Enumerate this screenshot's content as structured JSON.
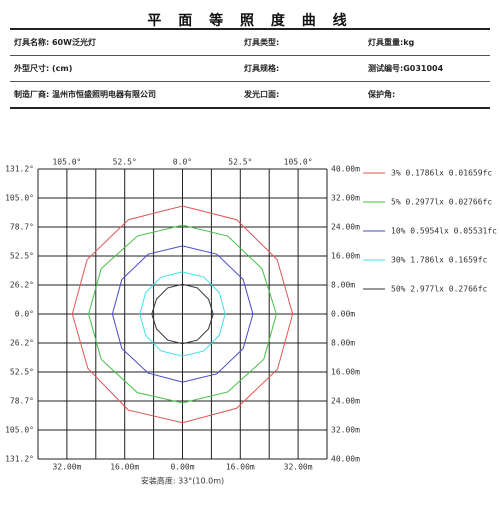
{
  "title": "平 面 等 照 度 曲 线",
  "table": {
    "rows": [
      [
        "灯具名称: 60W泛光灯",
        "灯具类型:",
        "灯具重量:kg"
      ],
      [
        "外型尺寸: (cm)",
        "灯具规格:",
        "测试编号:G031004"
      ],
      [
        "制造厂商: 温州市恒盛照明电器有限公司",
        "发光口面:",
        "保护角:"
      ]
    ]
  },
  "chart_data": {
    "type": "contour",
    "xlabel": "安装高度: 33°(10.0m)",
    "xlim": [
      -40,
      40
    ],
    "ylim": [
      -40,
      40
    ],
    "xgrid": [
      -40,
      -32,
      -24,
      -16,
      -8,
      0,
      8,
      16,
      24,
      32,
      40
    ],
    "xticks": [
      {
        "value": -32,
        "label": "32.00m"
      },
      {
        "value": -16,
        "label": "16.00m"
      },
      {
        "value": 0,
        "label": "0.00m"
      },
      {
        "value": 16,
        "label": "16.00m"
      },
      {
        "value": 32,
        "label": "32.00m"
      }
    ],
    "xticks_top": [
      {
        "value": -32,
        "label": "105.0°"
      },
      {
        "value": -16,
        "label": "52.5°"
      },
      {
        "value": 0,
        "label": "0.0°"
      },
      {
        "value": 16,
        "label": "52.5°"
      },
      {
        "value": 32,
        "label": "105.0°"
      }
    ],
    "yticks": [
      {
        "value": 40,
        "label": "40.00m"
      },
      {
        "value": 32,
        "label": "32.00m"
      },
      {
        "value": 24,
        "label": "24.00m"
      },
      {
        "value": 16,
        "label": "16.00m"
      },
      {
        "value": 8,
        "label": "8.00m"
      },
      {
        "value": 0,
        "label": "0.00m"
      },
      {
        "value": -8,
        "label": "8.00m"
      },
      {
        "value": -16,
        "label": "16.00m"
      },
      {
        "value": -24,
        "label": "24.00m"
      },
      {
        "value": -32,
        "label": "32.00m"
      },
      {
        "value": -40,
        "label": "40.00m"
      }
    ],
    "yticks_left": [
      {
        "value": 40,
        "label": "131.2°"
      },
      {
        "value": 32,
        "label": "105.0°"
      },
      {
        "value": 24,
        "label": "78.7°"
      },
      {
        "value": 16,
        "label": "52.5°"
      },
      {
        "value": 8,
        "label": "26.2°"
      },
      {
        "value": 0,
        "label": "0.0°"
      },
      {
        "value": -8,
        "label": "26.2°"
      },
      {
        "value": -16,
        "label": "52.5°"
      },
      {
        "value": -24,
        "label": "78.7°"
      },
      {
        "value": -32,
        "label": "105.0°"
      },
      {
        "value": -40,
        "label": "131.2°"
      }
    ],
    "series": [
      {
        "name": "3% 0.1786lx 0.01659fc",
        "color": "#e05555",
        "x": [
          30.5,
          26.2,
          15,
          0,
          -15,
          -26.4,
          -30.5,
          -26.2,
          -15,
          0,
          15,
          26.3
        ],
        "y": [
          0,
          15,
          26,
          29.8,
          26,
          15,
          0,
          -15,
          -26.5,
          -30,
          -26,
          -15.2
        ]
      },
      {
        "name": "5% 0.2977lx 0.02766fc",
        "color": "#44c044",
        "x": [
          26,
          22,
          12.5,
          0,
          -12.5,
          -22.5,
          -26,
          -22.5,
          -12.5,
          0,
          12.5,
          22.5
        ],
        "y": [
          0,
          12.5,
          21.5,
          24.5,
          21.5,
          12.5,
          0,
          -12.5,
          -21.7,
          -24.5,
          -21.5,
          -12.5
        ]
      },
      {
        "name": "10% 0.5954lx 0.05531fc",
        "color": "#4a4ac8",
        "x": [
          19.5,
          16.8,
          9.5,
          0,
          -9.5,
          -16.8,
          -19.4,
          -16.8,
          -9.5,
          0,
          9.5,
          16.8
        ],
        "y": [
          0,
          9.5,
          16.5,
          18.8,
          16.5,
          9.5,
          0,
          -9.5,
          -16.3,
          -18.8,
          -16.5,
          -9.5
        ]
      },
      {
        "name": "30% 1.786lx 0.1659fc",
        "color": "#44e0e0",
        "x": [
          11.8,
          10.2,
          5.9,
          0,
          -5.9,
          -10.2,
          -11.8,
          -10.2,
          -5.9,
          0,
          5.9,
          10.2
        ],
        "y": [
          0,
          5.9,
          10.2,
          11.6,
          10.2,
          5.9,
          0,
          -5.9,
          -10.2,
          -11.6,
          -10.2,
          -5.9
        ]
      },
      {
        "name": "50% 2.977lx 0.2766fc",
        "color": "#333333",
        "x": [
          8.5,
          7.2,
          4.1,
          0,
          -4.1,
          -7.2,
          -8.5,
          -7.2,
          -4.1,
          0,
          4.1,
          7.2
        ],
        "y": [
          0,
          4.1,
          7.2,
          8.2,
          7.2,
          4.1,
          0,
          -4.1,
          -7.2,
          -8.2,
          -7.2,
          -4.1
        ]
      }
    ]
  }
}
